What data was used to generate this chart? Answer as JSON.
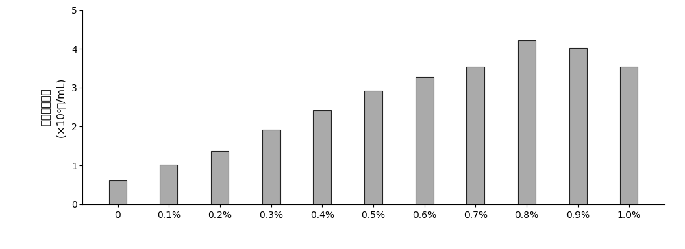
{
  "categories": [
    "0",
    "0.1%",
    "0.2%",
    "0.3%",
    "0.4%",
    "0.5%",
    "0.6%",
    "0.7%",
    "0.8%",
    "0.9%",
    "1.0%"
  ],
  "values": [
    0.62,
    1.02,
    1.38,
    1.92,
    2.42,
    2.92,
    3.28,
    3.55,
    4.22,
    4.02,
    3.55
  ],
  "bar_color": "#aaaaaa",
  "bar_edgecolor": "#222222",
  "ylabel_line1": "原生质体产量",
  "ylabel_line2": "(×10⁶个/mL)",
  "ylim": [
    0,
    5
  ],
  "yticks": [
    0,
    1,
    2,
    3,
    4,
    5
  ],
  "background_color": "#ffffff",
  "ylabel_fontsize": 11,
  "tick_fontsize": 10,
  "bar_width": 0.35,
  "figwidth": 10.0,
  "figheight": 3.63,
  "dpi": 100
}
